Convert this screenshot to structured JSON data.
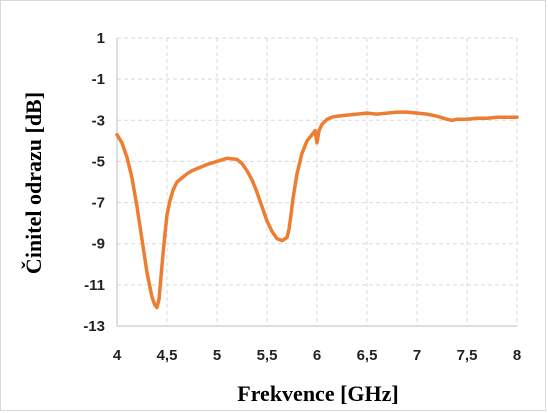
{
  "chart_data": {
    "type": "line",
    "xlabel": "Frekvence [GHz]",
    "ylabel": "Činitel odrazu [dB]",
    "xlim": [
      4,
      8
    ],
    "ylim": [
      -13,
      1
    ],
    "x_ticks": [
      4,
      4.5,
      5,
      5.5,
      6,
      6.5,
      7,
      7.5,
      8
    ],
    "x_tick_labels": [
      "4",
      "4,5",
      "5",
      "5,5",
      "6",
      "6,5",
      "7",
      "7,5",
      "8"
    ],
    "y_ticks": [
      1,
      -1,
      -3,
      -5,
      -7,
      -9,
      -11,
      -13
    ],
    "y_tick_labels": [
      "1",
      "-1",
      "-3",
      "-5",
      "-7",
      "-9",
      "-11",
      "-13"
    ],
    "grid": true,
    "legend": "none",
    "series": [
      {
        "color": "#ed7d31",
        "x": [
          4.0,
          4.05,
          4.1,
          4.15,
          4.2,
          4.25,
          4.3,
          4.35,
          4.38,
          4.4,
          4.42,
          4.44,
          4.46,
          4.48,
          4.5,
          4.53,
          4.56,
          4.6,
          4.65,
          4.7,
          4.75,
          4.8,
          4.9,
          5.0,
          5.1,
          5.2,
          5.25,
          5.3,
          5.35,
          5.4,
          5.45,
          5.5,
          5.55,
          5.6,
          5.65,
          5.7,
          5.72,
          5.74,
          5.76,
          5.8,
          5.85,
          5.9,
          5.95,
          5.98,
          6.0,
          6.02,
          6.05,
          6.1,
          6.15,
          6.2,
          6.3,
          6.4,
          6.5,
          6.6,
          6.7,
          6.8,
          6.9,
          7.0,
          7.1,
          7.2,
          7.3,
          7.35,
          7.4,
          7.5,
          7.6,
          7.7,
          7.8,
          7.9,
          8.0
        ],
        "y": [
          -3.7,
          -4.1,
          -4.8,
          -5.8,
          -7.2,
          -8.8,
          -10.4,
          -11.6,
          -12.0,
          -12.1,
          -11.7,
          -10.6,
          -9.5,
          -8.5,
          -7.6,
          -6.9,
          -6.4,
          -6.0,
          -5.8,
          -5.6,
          -5.45,
          -5.35,
          -5.15,
          -5.0,
          -4.85,
          -4.9,
          -5.1,
          -5.45,
          -5.9,
          -6.5,
          -7.2,
          -7.9,
          -8.4,
          -8.75,
          -8.85,
          -8.7,
          -8.3,
          -7.6,
          -6.8,
          -5.6,
          -4.6,
          -4.0,
          -3.7,
          -3.5,
          -4.1,
          -3.5,
          -3.2,
          -2.95,
          -2.85,
          -2.8,
          -2.75,
          -2.7,
          -2.65,
          -2.7,
          -2.65,
          -2.6,
          -2.6,
          -2.65,
          -2.7,
          -2.8,
          -2.95,
          -3.0,
          -2.95,
          -2.95,
          -2.9,
          -2.9,
          -2.85,
          -2.85,
          -2.85
        ]
      }
    ]
  }
}
